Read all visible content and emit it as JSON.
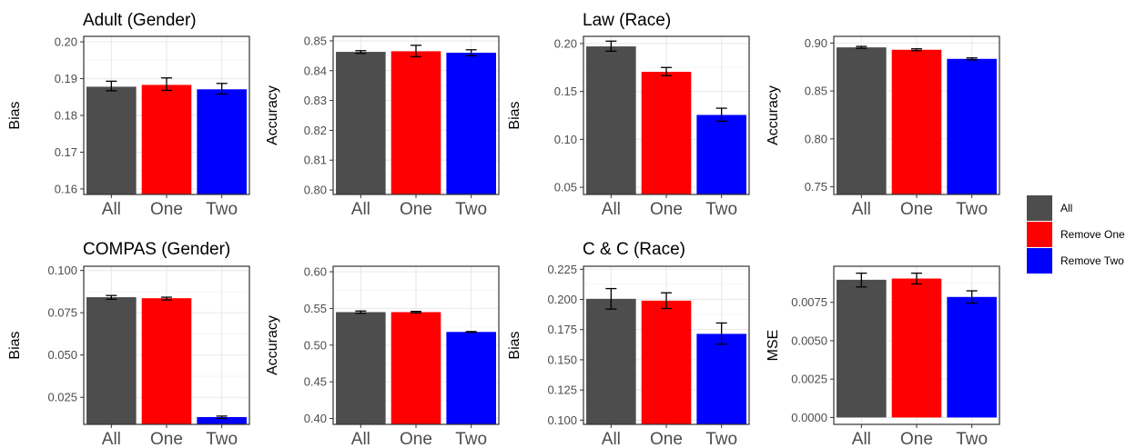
{
  "colors": {
    "All": "#4d4d4d",
    "One": "#ff0000",
    "Two": "#0000ff",
    "grid_major": "#ebebeb",
    "grid_minor": "#f5f5f5",
    "panel_border": "#333333",
    "tick_text": "#4d4d4d"
  },
  "legend": {
    "placement": "right",
    "items": [
      {
        "label": "All",
        "color": "#4d4d4d"
      },
      {
        "label": "Remove One",
        "color": "#ff0000"
      },
      {
        "label": "Remove Two",
        "color": "#0000ff"
      }
    ]
  },
  "chart_data": [
    {
      "id": "adult-bias",
      "type": "bar",
      "title": "Adult (Gender)",
      "ylabel": "Bias",
      "categories": [
        "All",
        "One",
        "Two"
      ],
      "values": [
        0.1878,
        0.1883,
        0.1871
      ],
      "errors": [
        [
          0.1867,
          0.1893
        ],
        [
          0.1868,
          0.1902
        ],
        [
          0.1858,
          0.1887
        ]
      ],
      "ylim": [
        0.1585,
        0.2015
      ],
      "yticks": [
        0.16,
        0.17,
        0.18,
        0.19,
        0.2
      ],
      "yticklabels": [
        "0.16",
        "0.17",
        "0.18",
        "0.19",
        "0.20"
      ],
      "bar_base": "min",
      "grid": true
    },
    {
      "id": "adult-accuracy",
      "type": "bar",
      "title": "",
      "ylabel": "Accuracy",
      "categories": [
        "All",
        "One",
        "Two"
      ],
      "values": [
        0.8463,
        0.8465,
        0.846
      ],
      "errors": [
        [
          0.8458,
          0.8467
        ],
        [
          0.8447,
          0.8485
        ],
        [
          0.845,
          0.847
        ]
      ],
      "ylim": [
        0.7985,
        0.8515
      ],
      "yticks": [
        0.8,
        0.81,
        0.82,
        0.83,
        0.84,
        0.85
      ],
      "yticklabels": [
        "0.80",
        "0.81",
        "0.82",
        "0.83",
        "0.84",
        "0.85"
      ],
      "bar_base": "min",
      "grid": true
    },
    {
      "id": "law-bias",
      "type": "bar",
      "title": "Law (Race)",
      "ylabel": "Bias",
      "categories": [
        "All",
        "One",
        "Two"
      ],
      "values": [
        0.197,
        0.1705,
        0.1255
      ],
      "errors": [
        [
          0.192,
          0.2025
        ],
        [
          0.1665,
          0.175
        ],
        [
          0.119,
          0.1325
        ]
      ],
      "ylim": [
        0.0425,
        0.2075
      ],
      "yticks": [
        0.05,
        0.1,
        0.15,
        0.2
      ],
      "yticklabels": [
        "0.05",
        "0.10",
        "0.15",
        "0.20"
      ],
      "bar_base": "min",
      "grid": true
    },
    {
      "id": "law-accuracy",
      "type": "bar",
      "title": "",
      "ylabel": "Accuracy",
      "categories": [
        "All",
        "One",
        "Two"
      ],
      "values": [
        0.8955,
        0.893,
        0.8835
      ],
      "errors": [
        [
          0.8945,
          0.8965
        ],
        [
          0.892,
          0.894
        ],
        [
          0.8825,
          0.8845
        ]
      ],
      "ylim": [
        0.742,
        0.907
      ],
      "yticks": [
        0.75,
        0.8,
        0.85,
        0.9
      ],
      "yticklabels": [
        "0.75",
        "0.80",
        "0.85",
        "0.90"
      ],
      "bar_base": "min",
      "grid": true
    },
    {
      "id": "compas-bias",
      "type": "bar",
      "title": "COMPAS (Gender)",
      "ylabel": "Bias",
      "categories": [
        "All",
        "One",
        "Two"
      ],
      "values": [
        0.0842,
        0.0836,
        0.0133
      ],
      "errors": [
        [
          0.083,
          0.0852
        ],
        [
          0.0826,
          0.0842
        ],
        [
          0.0125,
          0.0139
        ]
      ],
      "ylim": [
        0.009,
        0.1025
      ],
      "yticks": [
        0.025,
        0.05,
        0.075,
        0.1
      ],
      "yticklabels": [
        "0.025",
        "0.050",
        "0.075",
        "0.100"
      ],
      "bar_base": "min",
      "grid": true
    },
    {
      "id": "compas-accuracy",
      "type": "bar",
      "title": "",
      "ylabel": "Accuracy",
      "categories": [
        "All",
        "One",
        "Two"
      ],
      "values": [
        0.545,
        0.545,
        0.518
      ],
      "errors": [
        [
          0.5435,
          0.5465
        ],
        [
          0.544,
          0.546
        ],
        [
          0.5175,
          0.5185
        ]
      ],
      "ylim": [
        0.392,
        0.6075
      ],
      "yticks": [
        0.4,
        0.45,
        0.5,
        0.55,
        0.6
      ],
      "yticklabels": [
        "0.40",
        "0.45",
        "0.50",
        "0.55",
        "0.60"
      ],
      "bar_base": "min",
      "grid": true
    },
    {
      "id": "cc-bias",
      "type": "bar",
      "title": "C & C (Race)",
      "ylabel": "Bias",
      "categories": [
        "All",
        "One",
        "Two"
      ],
      "values": [
        0.2005,
        0.199,
        0.1715
      ],
      "errors": [
        [
          0.192,
          0.209
        ],
        [
          0.1925,
          0.2055
        ],
        [
          0.163,
          0.1805
        ]
      ],
      "ylim": [
        0.0965,
        0.2275
      ],
      "yticks": [
        0.1,
        0.125,
        0.15,
        0.175,
        0.2,
        0.225
      ],
      "yticklabels": [
        "0.100",
        "0.125",
        "0.150",
        "0.175",
        "0.200",
        "0.225"
      ],
      "bar_base": "min",
      "grid": true
    },
    {
      "id": "cc-mse",
      "type": "bar",
      "title": "",
      "ylabel": "MSE",
      "categories": [
        "All",
        "One",
        "Two"
      ],
      "values": [
        0.00897,
        0.00905,
        0.00785
      ],
      "errors": [
        [
          0.0085,
          0.0094
        ],
        [
          0.0087,
          0.0094
        ],
        [
          0.00745,
          0.00825
        ]
      ],
      "ylim": [
        -0.00045,
        0.00985
      ],
      "yticks": [
        0.0,
        0.0025,
        0.005,
        0.0075
      ],
      "yticklabels": [
        "0.0000",
        "0.0025",
        "0.0050",
        "0.0075"
      ],
      "bar_base": "zero",
      "grid": true
    }
  ]
}
